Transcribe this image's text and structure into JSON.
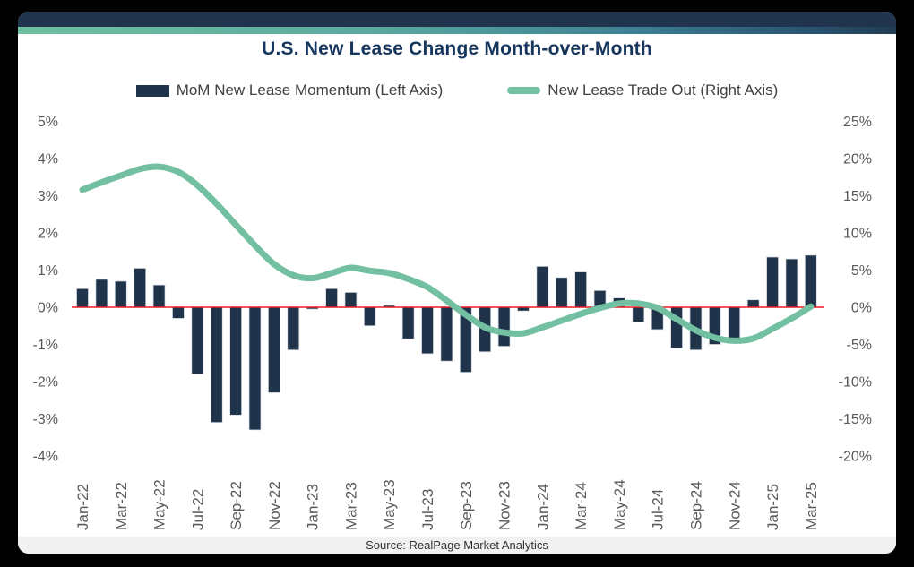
{
  "source": "Source: RealPage Market Analytics",
  "chart_data": {
    "type": "bar",
    "combo": "bar+line dual axis",
    "title": "U.S. New Lease Change Month-over-Month",
    "categories": [
      "Jan-22",
      "Feb-22",
      "Mar-22",
      "Apr-22",
      "May-22",
      "Jun-22",
      "Jul-22",
      "Aug-22",
      "Sep-22",
      "Oct-22",
      "Nov-22",
      "Dec-22",
      "Jan-23",
      "Feb-23",
      "Mar-23",
      "Apr-23",
      "May-23",
      "Jun-23",
      "Jul-23",
      "Aug-23",
      "Sep-23",
      "Oct-23",
      "Nov-23",
      "Dec-23",
      "Jan-24",
      "Feb-24",
      "Mar-24",
      "Apr-24",
      "May-24",
      "Jun-24",
      "Jul-24",
      "Aug-24",
      "Sep-24",
      "Oct-24",
      "Nov-24",
      "Dec-24",
      "Jan-25",
      "Feb-25",
      "Mar-25"
    ],
    "x_tick_labels": [
      "Jan-22",
      "Mar-22",
      "May-22",
      "Jul-22",
      "Sep-22",
      "Nov-22",
      "Jan-23",
      "Mar-23",
      "May-23",
      "Jul-23",
      "Sep-23",
      "Nov-23",
      "Jan-24",
      "Mar-24",
      "May-24",
      "Jul-24",
      "Sep-24",
      "Nov-24",
      "Jan-25",
      "Mar-25"
    ],
    "series": [
      {
        "name": "MoM New Lease Momentum (Left Axis)",
        "type": "bar",
        "axis": "left",
        "color": "#1F334B",
        "values": [
          0.5,
          0.75,
          0.7,
          1.05,
          0.6,
          -0.3,
          -1.8,
          -3.1,
          -2.9,
          -3.3,
          -2.3,
          -1.15,
          -0.05,
          0.5,
          0.4,
          -0.5,
          0.05,
          -0.85,
          -1.25,
          -1.45,
          -1.75,
          -1.2,
          -1.05,
          -0.1,
          1.1,
          0.8,
          0.95,
          0.45,
          0.25,
          -0.4,
          -0.6,
          -1.1,
          -1.15,
          -1.0,
          -0.9,
          0.2,
          1.35,
          1.3,
          1.4
        ]
      },
      {
        "name": "New Lease Trade Out (Right Axis)",
        "type": "line",
        "axis": "right",
        "color": "#72BFA1",
        "values": [
          15.8,
          16.8,
          17.7,
          18.6,
          18.9,
          18.2,
          16.4,
          13.9,
          11.1,
          8.3,
          5.8,
          4.3,
          3.9,
          4.6,
          5.3,
          4.9,
          4.6,
          3.8,
          2.7,
          0.9,
          -1.0,
          -2.7,
          -3.4,
          -3.5,
          -2.7,
          -1.8,
          -0.9,
          -0.1,
          0.5,
          0.5,
          -0.1,
          -1.6,
          -3.1,
          -4.1,
          -4.5,
          -4.2,
          -2.9,
          -1.5,
          0.1
        ]
      }
    ],
    "left_axis": {
      "min": -4,
      "max": 5,
      "tick_values": [
        5,
        4,
        3,
        2,
        1,
        0,
        -1,
        -2,
        -3,
        -4
      ],
      "ticks": [
        "5%",
        "4%",
        "3%",
        "2%",
        "1%",
        "0%",
        "-1%",
        "-2%",
        "-3%",
        "-4%"
      ]
    },
    "right_axis": {
      "min": -20,
      "max": 25,
      "tick_values": [
        25,
        20,
        15,
        10,
        5,
        0,
        -5,
        -10,
        -15,
        -20
      ],
      "ticks": [
        "25%",
        "20%",
        "15%",
        "10%",
        "5%",
        "0%",
        "-5%",
        "-10%",
        "-15%",
        "-20%"
      ]
    },
    "zero_line_color": "#EC1C24",
    "axis_text_color": "#595959",
    "grid": false,
    "legend_position": "top"
  }
}
